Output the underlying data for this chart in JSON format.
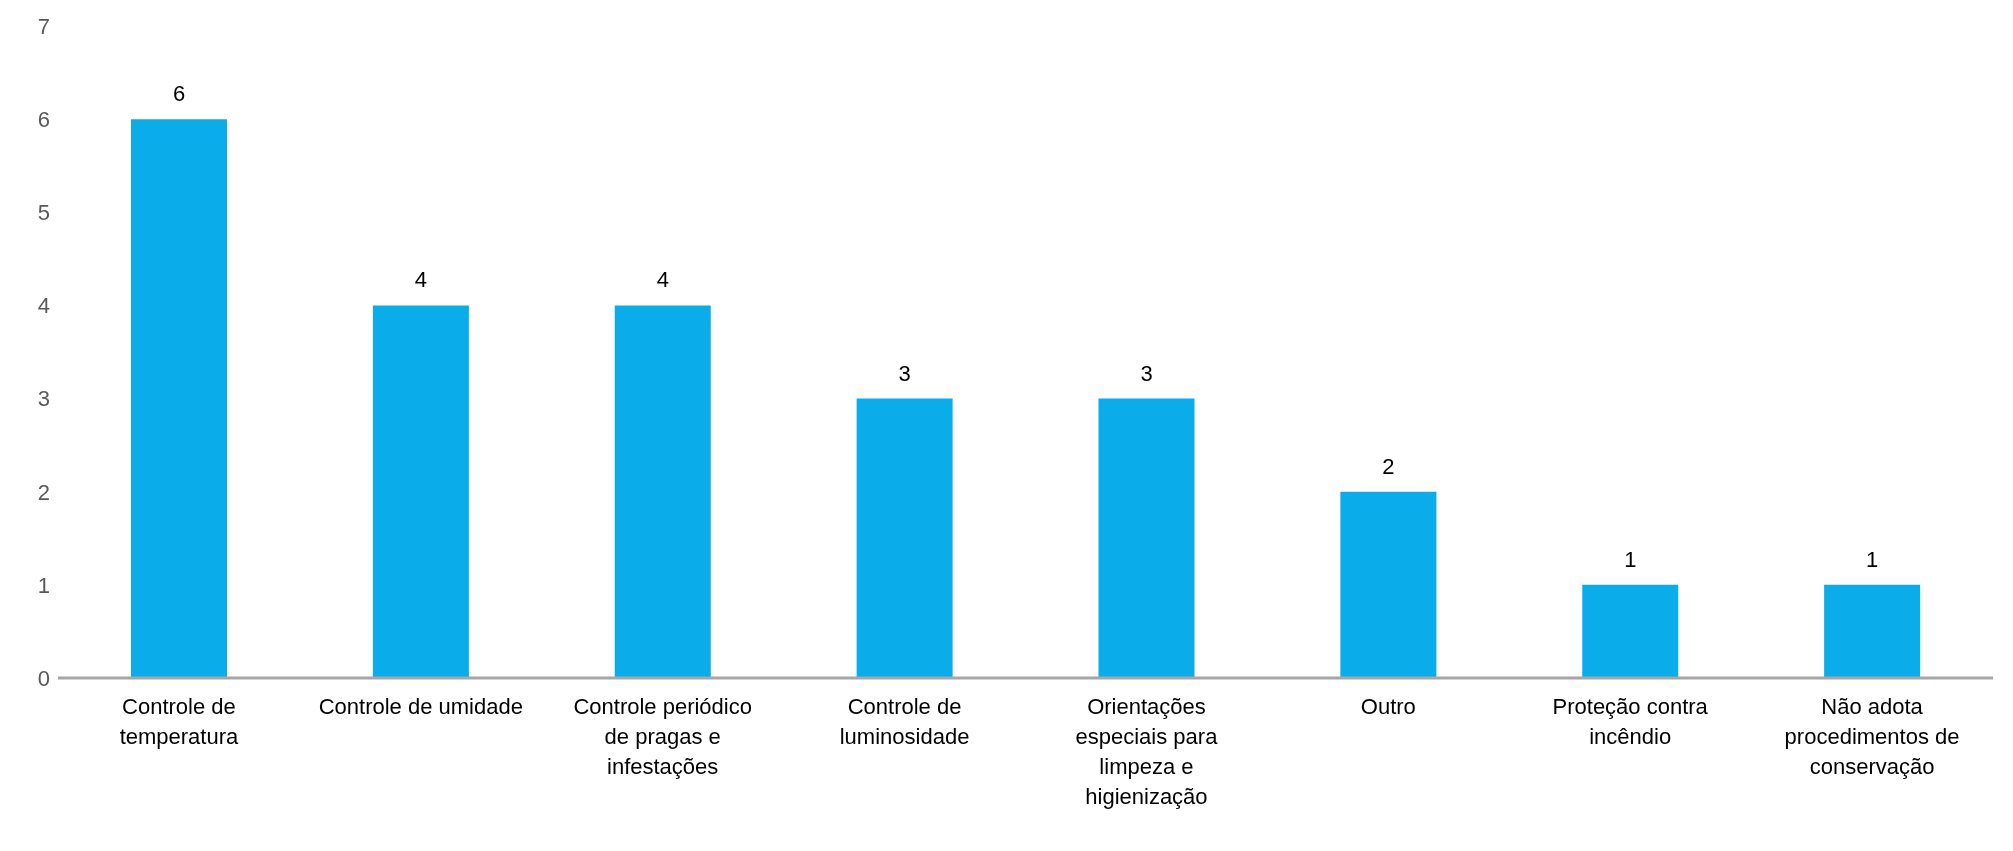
{
  "chart_data": {
    "type": "bar",
    "categories": [
      "Controle de temperatura",
      "Controle de umidade",
      "Controle periódico de pragas e infestações",
      "Controle de luminosidade",
      "Orientações especiais para limpeza e higienização",
      "Outro",
      "Proteção contra incêndio",
      "Não adota procedimentos de conservação"
    ],
    "values": [
      6,
      4,
      4,
      3,
      3,
      2,
      1,
      1
    ],
    "color": "#0aacea",
    "ylim": [
      0,
      7
    ],
    "yticks": [
      0,
      1,
      2,
      3,
      4,
      5,
      6,
      7
    ],
    "grid": false,
    "data_labels": true
  }
}
